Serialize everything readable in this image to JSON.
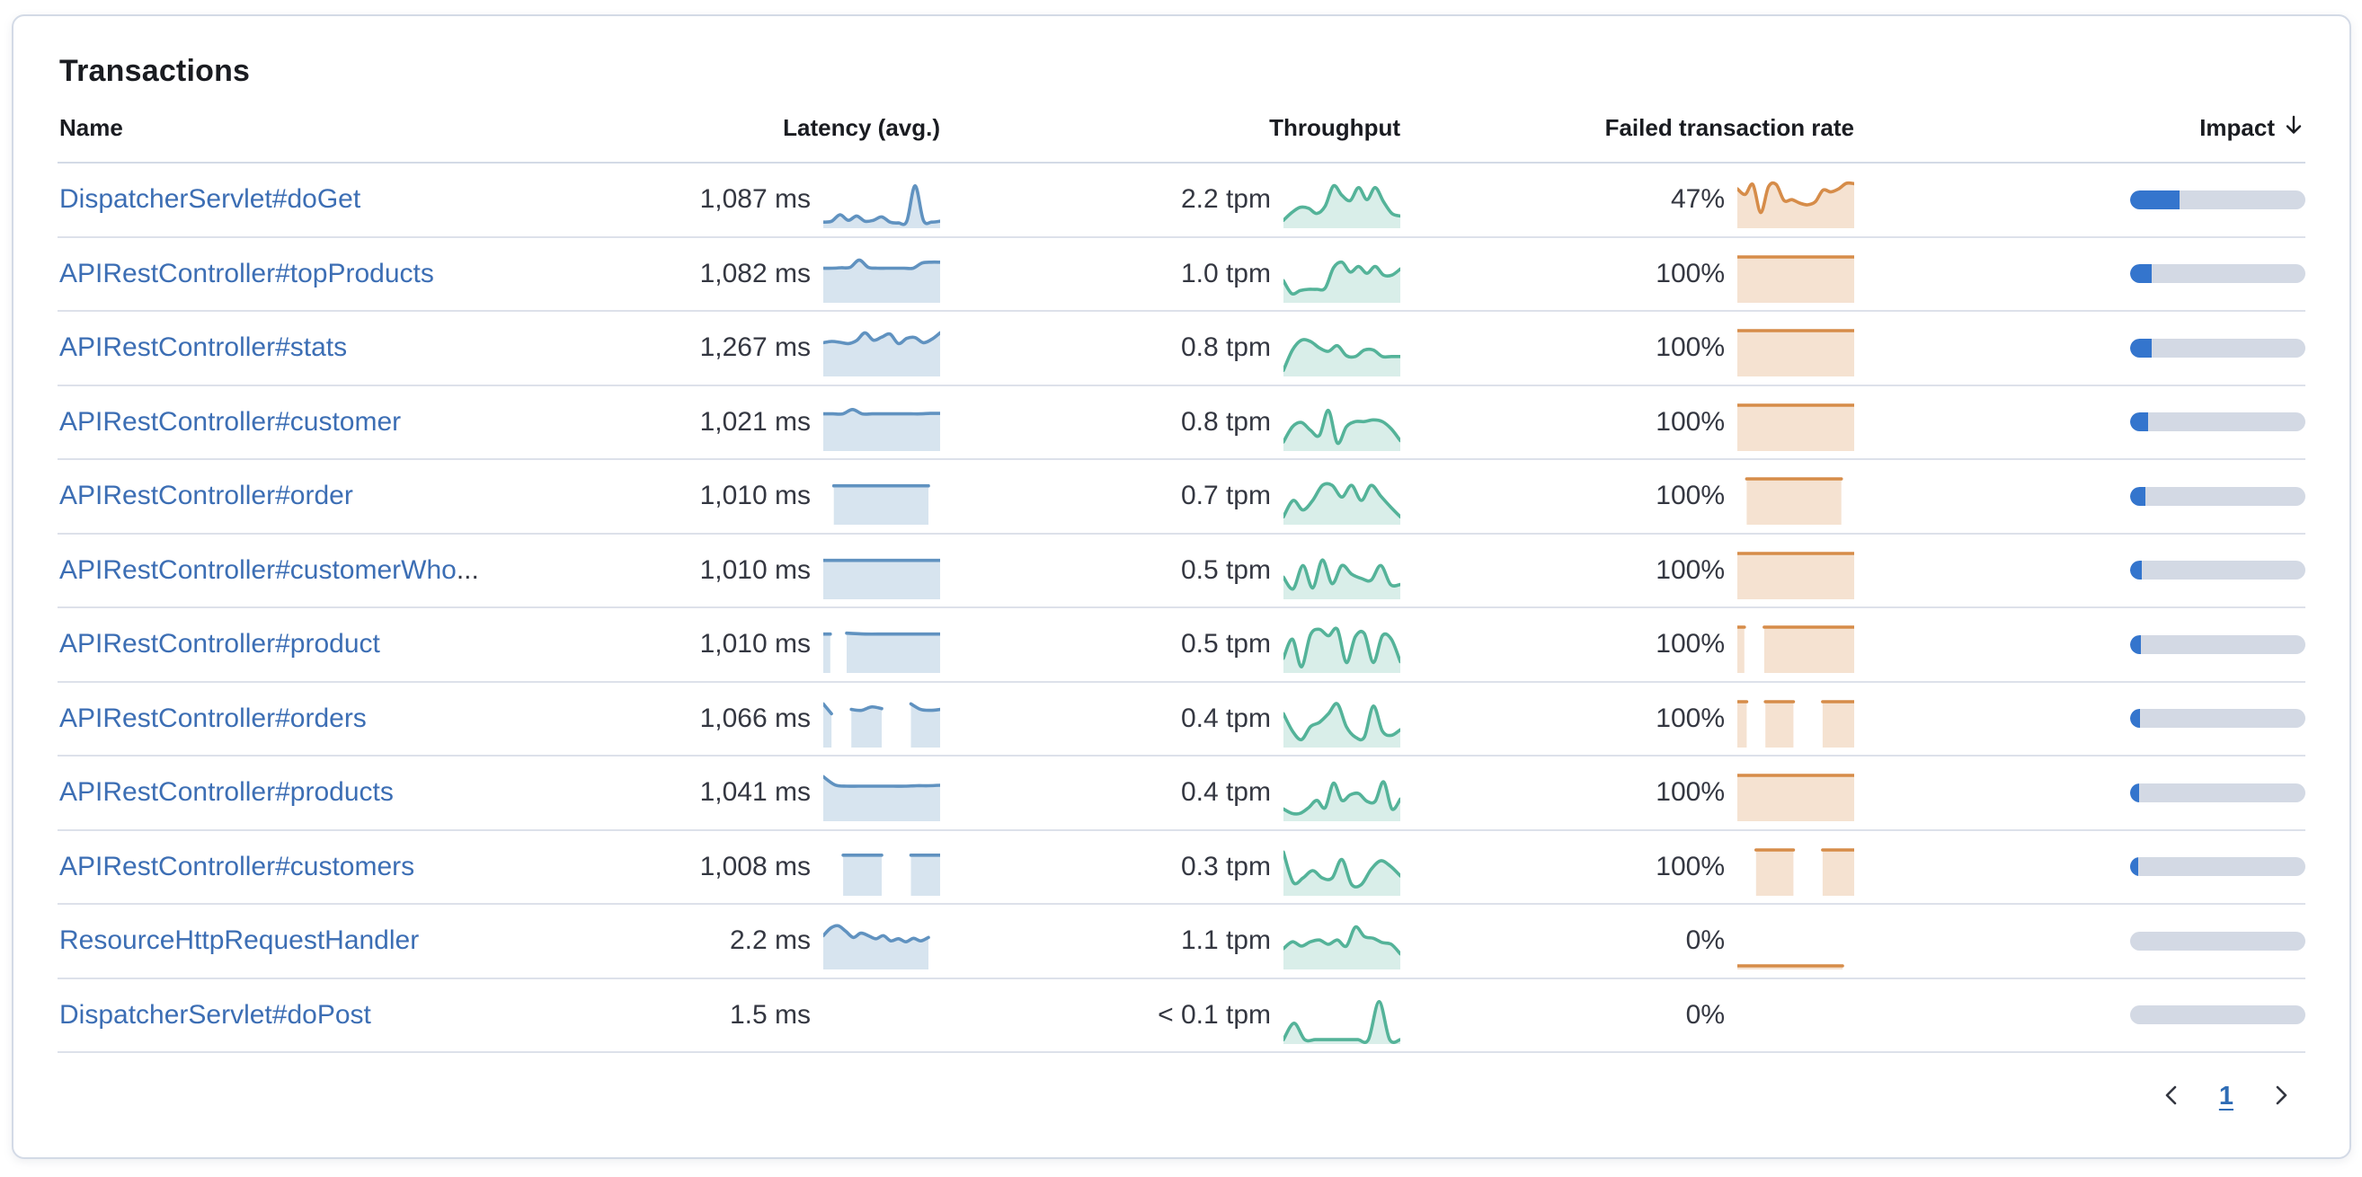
{
  "panel": {
    "title": "Transactions"
  },
  "colors": {
    "latency_line": "#6092c0",
    "latency_fill": "rgba(96,146,192,0.25)",
    "throughput_line": "#54b399",
    "throughput_fill": "rgba(84,179,153,0.22)",
    "failed_line": "#d68c49",
    "failed_fill": "rgba(214,140,73,0.25)",
    "impact_fill": "#3475cd",
    "impact_track": "#d3d9e4",
    "link": "#3c6eb4",
    "text": "#343741",
    "heading": "#1a1c21",
    "divider": "#d3dae6"
  },
  "table": {
    "columns": [
      {
        "label": "Name"
      },
      {
        "label": "Latency (avg.)"
      },
      {
        "label": "Throughput"
      },
      {
        "label": "Failed transaction rate"
      },
      {
        "label": "Impact",
        "sort": "desc"
      }
    ],
    "rows": [
      {
        "name": "DispatcherServlet#doGet",
        "ellipsis": "",
        "latency": "1,087 ms",
        "throughput": "2.2 tpm",
        "failed_rate": "47%",
        "impact": 0.28,
        "latency_spark": [
          {
            "x0": 0,
            "x1": 1,
            "v": [
              0.08,
              0.1,
              0.25,
              0.12,
              0.22,
              0.1,
              0.12,
              0.2,
              0.08,
              0.06,
              0.1,
              0.92,
              0.12,
              0.08,
              0.1
            ]
          }
        ],
        "throughput_spark": [
          {
            "x0": 0,
            "x1": 1,
            "v": [
              0.12,
              0.3,
              0.42,
              0.4,
              0.28,
              0.45,
              0.92,
              0.7,
              0.58,
              0.88,
              0.6,
              0.88,
              0.55,
              0.28,
              0.22
            ]
          }
        ],
        "failed_spark": [
          {
            "x0": 0,
            "x1": 1,
            "v": [
              0.85,
              0.72,
              0.95,
              0.3,
              0.9,
              0.95,
              0.58,
              0.6,
              0.52,
              0.48,
              0.55,
              0.82,
              0.78,
              0.85,
              0.98,
              0.97
            ]
          }
        ]
      },
      {
        "name": "APIRestController#topProducts",
        "ellipsis": "",
        "latency": "1,082 ms",
        "throughput": "1.0 tpm",
        "failed_rate": "100%",
        "impact": 0.125,
        "latency_spark": [
          {
            "x0": 0,
            "x1": 1,
            "v": [
              0.74,
              0.74,
              0.75,
              0.76,
              0.93,
              0.76,
              0.74,
              0.74,
              0.74,
              0.74,
              0.74,
              0.86,
              0.88,
              0.88
            ]
          }
        ],
        "throughput_spark": [
          {
            "x0": 0,
            "x1": 1,
            "v": [
              0.45,
              0.15,
              0.22,
              0.25,
              0.25,
              0.28,
              0.75,
              0.88,
              0.65,
              0.78,
              0.62,
              0.78,
              0.58,
              0.58,
              0.72
            ]
          }
        ],
        "failed_spark": [
          {
            "x0": 0,
            "x1": 1,
            "v": [
              1,
              1,
              1,
              1,
              1,
              1,
              1,
              1
            ]
          }
        ]
      },
      {
        "name": "APIRestController#stats",
        "ellipsis": "",
        "latency": "1,267 ms",
        "throughput": "0.8 tpm",
        "failed_rate": "100%",
        "impact": 0.125,
        "latency_spark": [
          {
            "x0": 0,
            "x1": 1,
            "v": [
              0.72,
              0.75,
              0.73,
              0.7,
              0.77,
              0.95,
              0.78,
              0.85,
              0.92,
              0.7,
              0.82,
              0.84,
              0.72,
              0.8,
              0.95
            ]
          }
        ],
        "throughput_spark": [
          {
            "x0": 0,
            "x1": 1,
            "v": [
              0.08,
              0.55,
              0.78,
              0.75,
              0.6,
              0.52,
              0.65,
              0.42,
              0.4,
              0.55,
              0.55,
              0.4,
              0.4,
              0.4
            ]
          }
        ],
        "failed_spark": [
          {
            "x0": 0,
            "x1": 1,
            "v": [
              1,
              1,
              1,
              1,
              1,
              1,
              1,
              1
            ]
          }
        ]
      },
      {
        "name": "APIRestController#customer",
        "ellipsis": "",
        "latency": "1,021 ms",
        "throughput": "0.8 tpm",
        "failed_rate": "100%",
        "impact": 0.1,
        "latency_spark": [
          {
            "x0": 0,
            "x1": 1,
            "v": [
              0.8,
              0.8,
              0.8,
              0.9,
              0.8,
              0.8,
              0.8,
              0.8,
              0.8,
              0.8,
              0.8,
              0.81,
              0.81
            ]
          }
        ],
        "throughput_spark": [
          {
            "x0": 0,
            "x1": 1,
            "v": [
              0.15,
              0.5,
              0.6,
              0.42,
              0.3,
              0.88,
              0.12,
              0.5,
              0.62,
              0.62,
              0.66,
              0.62,
              0.45,
              0.18
            ]
          }
        ],
        "failed_spark": [
          {
            "x0": 0,
            "x1": 1,
            "v": [
              1,
              1,
              1,
              1,
              1,
              1,
              1,
              1
            ]
          }
        ]
      },
      {
        "name": "APIRestController#order",
        "ellipsis": "",
        "latency": "1,010 ms",
        "throughput": "0.7 tpm",
        "failed_rate": "100%",
        "impact": 0.085,
        "latency_spark": [
          {
            "x0": 0.09,
            "x1": 0.9,
            "v": [
              0.84,
              0.84,
              0.84,
              0.84,
              0.84,
              0.84
            ]
          }
        ],
        "throughput_spark": [
          {
            "x0": 0,
            "x1": 1,
            "v": [
              0.12,
              0.5,
              0.28,
              0.5,
              0.85,
              0.85,
              0.58,
              0.85,
              0.5,
              0.85,
              0.6,
              0.35,
              0.12
            ]
          }
        ],
        "failed_spark": [
          {
            "x0": 0.08,
            "x1": 0.89,
            "v": [
              1,
              1,
              1,
              1,
              1
            ]
          }
        ]
      },
      {
        "name": "APIRestController#customerWho",
        "ellipsis": "...",
        "latency": "1,010 ms",
        "throughput": "0.5 tpm",
        "failed_rate": "100%",
        "impact": 0.068,
        "latency_spark": [
          {
            "x0": 0,
            "x1": 1,
            "v": [
              0.84,
              0.84,
              0.84,
              0.84,
              0.84,
              0.84,
              0.84,
              0.84
            ]
          }
        ],
        "throughput_spark": [
          {
            "x0": 0,
            "x1": 1,
            "v": [
              0.45,
              0.18,
              0.72,
              0.2,
              0.85,
              0.3,
              0.72,
              0.52,
              0.42,
              0.38,
              0.72,
              0.28,
              0.28
            ]
          }
        ],
        "failed_spark": [
          {
            "x0": 0,
            "x1": 1,
            "v": [
              1,
              1,
              1,
              1,
              1,
              1,
              1,
              1
            ]
          }
        ]
      },
      {
        "name": "APIRestController#product",
        "ellipsis": "",
        "latency": "1,010 ms",
        "throughput": "0.5 tpm",
        "failed_rate": "100%",
        "impact": 0.06,
        "latency_spark": [
          {
            "x0": 0,
            "x1": 0.06,
            "v": [
              0.84,
              0.84
            ]
          },
          {
            "x0": 0.2,
            "x1": 1,
            "v": [
              0.86,
              0.84,
              0.84,
              0.84,
              0.84,
              0.84
            ]
          }
        ],
        "throughput_spark": [
          {
            "x0": 0,
            "x1": 1,
            "v": [
              0.28,
              0.72,
              0.08,
              0.82,
              0.95,
              0.8,
              0.95,
              0.18,
              0.78,
              0.85,
              0.18,
              0.8,
              0.72,
              0.2
            ]
          }
        ],
        "failed_spark": [
          {
            "x0": 0,
            "x1": 0.06,
            "v": [
              1,
              1
            ]
          },
          {
            "x0": 0.23,
            "x1": 1,
            "v": [
              1,
              1,
              1,
              1,
              1
            ]
          }
        ]
      },
      {
        "name": "APIRestController#orders",
        "ellipsis": "",
        "latency": "1,066 ms",
        "throughput": "0.4 tpm",
        "failed_rate": "100%",
        "impact": 0.055,
        "latency_spark": [
          {
            "x0": 0,
            "x1": 0.07,
            "v": [
              0.95,
              0.72
            ]
          },
          {
            "x0": 0.24,
            "x1": 0.5,
            "v": [
              0.82,
              0.8,
              0.88,
              0.84
            ]
          },
          {
            "x0": 0.75,
            "x1": 1,
            "v": [
              0.95,
              0.82,
              0.8,
              0.82
            ]
          }
        ],
        "throughput_spark": [
          {
            "x0": 0,
            "x1": 1,
            "v": [
              0.72,
              0.32,
              0.12,
              0.42,
              0.52,
              0.72,
              0.95,
              0.42,
              0.18,
              0.18,
              0.9,
              0.32,
              0.22,
              0.35
            ]
          }
        ],
        "failed_spark": [
          {
            "x0": 0,
            "x1": 0.08,
            "v": [
              1,
              1
            ]
          },
          {
            "x0": 0.24,
            "x1": 0.48,
            "v": [
              1,
              1,
              1
            ]
          },
          {
            "x0": 0.73,
            "x1": 1,
            "v": [
              1,
              1,
              1
            ]
          }
        ]
      },
      {
        "name": "APIRestController#products",
        "ellipsis": "",
        "latency": "1,041 ms",
        "throughput": "0.4 tpm",
        "failed_rate": "100%",
        "impact": 0.052,
        "latency_spark": [
          {
            "x0": 0,
            "x1": 1,
            "v": [
              0.97,
              0.78,
              0.75,
              0.75,
              0.75,
              0.75,
              0.75,
              0.75,
              0.76,
              0.76,
              0.77
            ]
          }
        ],
        "throughput_spark": [
          {
            "x0": 0,
            "x1": 1,
            "v": [
              0.22,
              0.12,
              0.12,
              0.25,
              0.42,
              0.25,
              0.82,
              0.42,
              0.55,
              0.58,
              0.4,
              0.4,
              0.85,
              0.22,
              0.45
            ]
          }
        ],
        "failed_spark": [
          {
            "x0": 0,
            "x1": 1,
            "v": [
              1,
              1,
              1,
              1,
              1,
              1,
              1,
              1
            ]
          }
        ]
      },
      {
        "name": "APIRestController#customers",
        "ellipsis": "",
        "latency": "1,008 ms",
        "throughput": "0.3 tpm",
        "failed_rate": "100%",
        "impact": 0.048,
        "latency_spark": [
          {
            "x0": 0.17,
            "x1": 0.5,
            "v": [
              0.88,
              0.88,
              0.88
            ]
          },
          {
            "x0": 0.75,
            "x1": 1,
            "v": [
              0.88,
              0.88,
              0.88
            ]
          }
        ],
        "throughput_spark": [
          {
            "x0": 0,
            "x1": 1,
            "v": [
              0.95,
              0.25,
              0.35,
              0.52,
              0.35,
              0.35,
              0.78,
              0.2,
              0.2,
              0.55,
              0.75,
              0.62,
              0.4
            ]
          }
        ],
        "failed_spark": [
          {
            "x0": 0.16,
            "x1": 0.48,
            "v": [
              1,
              1,
              1
            ]
          },
          {
            "x0": 0.73,
            "x1": 1,
            "v": [
              1,
              1,
              1
            ]
          }
        ]
      },
      {
        "name": "ResourceHttpRequestHandler",
        "ellipsis": "",
        "latency": "2.2 ms",
        "throughput": "1.1 tpm",
        "failed_rate": "0%",
        "impact": 0,
        "latency_spark": [
          {
            "x0": 0,
            "x1": 0.9,
            "v": [
              0.72,
              0.9,
              0.95,
              0.82,
              0.68,
              0.78,
              0.72,
              0.65,
              0.72,
              0.6,
              0.65,
              0.58,
              0.66,
              0.6,
              0.68
            ]
          }
        ],
        "throughput_spark": [
          {
            "x0": 0,
            "x1": 1,
            "v": [
              0.42,
              0.58,
              0.48,
              0.58,
              0.62,
              0.52,
              0.62,
              0.48,
              0.92,
              0.7,
              0.66,
              0.56,
              0.52,
              0.3
            ]
          }
        ],
        "failed_spark": [
          {
            "x0": 0,
            "x1": 0.9,
            "v": [
              0.02,
              0.02,
              0.02,
              0.02
            ]
          }
        ]
      },
      {
        "name": "DispatcherServlet#doPost",
        "ellipsis": "",
        "latency": "1.5 ms",
        "throughput": "< 0.1 tpm",
        "failed_rate": "0%",
        "impact": 0,
        "latency_spark": [],
        "throughput_spark": [
          {
            "x0": 0,
            "x1": 1,
            "v": [
              0.04,
              0.42,
              0.04,
              0.04,
              0.04,
              0.04,
              0.04,
              0.04,
              0.04,
              0.92,
              0.04,
              0.04
            ]
          }
        ],
        "failed_spark": []
      }
    ]
  },
  "pagination": {
    "prev_label": "previous-page",
    "current_page": "1",
    "next_label": "next-page"
  }
}
